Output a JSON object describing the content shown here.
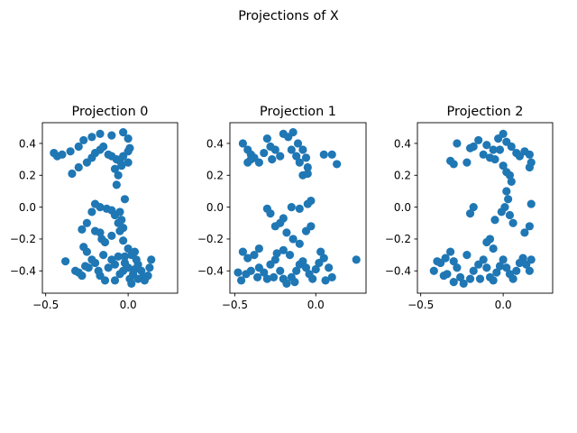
{
  "figure": {
    "title": "Projections of X"
  },
  "chart_data": [
    {
      "type": "scatter",
      "title": "Projection 0",
      "xlabel": "",
      "ylabel": "",
      "xlim": [
        -0.52,
        0.3
      ],
      "ylim": [
        -0.54,
        0.53
      ],
      "xticks": [
        -0.5,
        0.0
      ],
      "xtick_labels": [
        "−0.5",
        "0.0"
      ],
      "yticks": [
        -0.4,
        -0.2,
        0.0,
        0.2,
        0.4
      ],
      "ytick_labels": [
        "−0.4",
        "−0.2",
        "0.0",
        "0.2",
        "0.4"
      ],
      "grid": false,
      "color": "#1f77b4",
      "points": [
        [
          -0.45,
          0.34
        ],
        [
          -0.43,
          0.32
        ],
        [
          -0.4,
          0.33
        ],
        [
          -0.35,
          0.35
        ],
        [
          -0.3,
          0.38
        ],
        [
          -0.27,
          0.42
        ],
        [
          -0.22,
          0.44
        ],
        [
          -0.17,
          0.46
        ],
        [
          -0.1,
          0.45
        ],
        [
          -0.03,
          0.47
        ],
        [
          0.0,
          0.43
        ],
        [
          -0.34,
          0.21
        ],
        [
          -0.3,
          0.25
        ],
        [
          -0.25,
          0.28
        ],
        [
          -0.22,
          0.31
        ],
        [
          -0.2,
          0.34
        ],
        [
          -0.17,
          0.36
        ],
        [
          -0.15,
          0.38
        ],
        [
          -0.12,
          0.33
        ],
        [
          -0.1,
          0.32
        ],
        [
          -0.07,
          0.3
        ],
        [
          -0.05,
          0.29
        ],
        [
          -0.03,
          0.32
        ],
        [
          0.0,
          0.35
        ],
        [
          0.01,
          0.37
        ],
        [
          0.0,
          0.28
        ],
        [
          -0.04,
          0.26
        ],
        [
          -0.08,
          0.24
        ],
        [
          -0.06,
          0.2
        ],
        [
          -0.07,
          0.14
        ],
        [
          -0.2,
          0.02
        ],
        [
          -0.17,
          0.0
        ],
        [
          -0.13,
          -0.01
        ],
        [
          -0.1,
          -0.02
        ],
        [
          -0.08,
          -0.05
        ],
        [
          -0.05,
          -0.03
        ],
        [
          -0.02,
          0.05
        ],
        [
          -0.04,
          -0.08
        ],
        [
          -0.03,
          -0.13
        ],
        [
          -0.06,
          -0.1
        ],
        [
          -0.22,
          -0.03
        ],
        [
          -0.25,
          -0.1
        ],
        [
          -0.28,
          -0.14
        ],
        [
          -0.2,
          -0.15
        ],
        [
          -0.17,
          -0.16
        ],
        [
          -0.16,
          -0.2
        ],
        [
          -0.14,
          -0.22
        ],
        [
          -0.1,
          -0.18
        ],
        [
          -0.05,
          -0.15
        ],
        [
          -0.03,
          -0.21
        ],
        [
          -0.27,
          -0.25
        ],
        [
          -0.25,
          -0.28
        ],
        [
          -0.38,
          -0.34
        ],
        [
          -0.32,
          -0.4
        ],
        [
          -0.28,
          -0.43
        ],
        [
          -0.24,
          -0.38
        ],
        [
          -0.2,
          -0.35
        ],
        [
          -0.18,
          -0.4
        ],
        [
          -0.17,
          -0.43
        ],
        [
          -0.14,
          -0.46
        ],
        [
          -0.12,
          -0.38
        ],
        [
          -0.1,
          -0.33
        ],
        [
          -0.08,
          -0.36
        ],
        [
          -0.06,
          -0.31
        ],
        [
          -0.05,
          -0.42
        ],
        [
          -0.03,
          -0.4
        ],
        [
          -0.02,
          -0.35
        ],
        [
          0.0,
          -0.38
        ],
        [
          0.01,
          -0.45
        ],
        [
          0.02,
          -0.48
        ],
        [
          0.03,
          -0.42
        ],
        [
          0.04,
          -0.39
        ],
        [
          0.05,
          -0.33
        ],
        [
          0.06,
          -0.36
        ],
        [
          0.08,
          -0.4
        ],
        [
          0.09,
          -0.44
        ],
        [
          0.1,
          -0.46
        ],
        [
          0.12,
          -0.43
        ],
        [
          0.13,
          -0.38
        ],
        [
          0.14,
          -0.33
        ],
        [
          -0.02,
          -0.31
        ],
        [
          0.0,
          -0.26
        ],
        [
          0.02,
          -0.3
        ],
        [
          0.04,
          -0.28
        ],
        [
          0.06,
          -0.45
        ],
        [
          -0.08,
          -0.46
        ],
        [
          -0.15,
          -0.3
        ],
        [
          -0.22,
          -0.33
        ],
        [
          -0.3,
          -0.41
        ],
        [
          -0.26,
          -0.37
        ]
      ]
    },
    {
      "type": "scatter",
      "title": "Projection 1",
      "xlabel": "",
      "ylabel": "",
      "xlim": [
        -0.53,
        0.31
      ],
      "ylim": [
        -0.54,
        0.53
      ],
      "xticks": [
        -0.5,
        0.0
      ],
      "xtick_labels": [
        "−0.5",
        "0.0"
      ],
      "yticks": [
        -0.4,
        -0.2,
        0.0,
        0.2,
        0.4
      ],
      "ytick_labels": [
        "−0.4",
        "−0.2",
        "0.0",
        "0.2",
        "0.4"
      ],
      "grid": false,
      "color": "#1f77b4",
      "points": [
        [
          -0.45,
          0.4
        ],
        [
          -0.42,
          0.36
        ],
        [
          -0.4,
          0.33
        ],
        [
          -0.38,
          0.31
        ],
        [
          -0.35,
          0.28
        ],
        [
          -0.32,
          0.34
        ],
        [
          -0.3,
          0.43
        ],
        [
          -0.28,
          0.38
        ],
        [
          -0.25,
          0.36
        ],
        [
          -0.22,
          0.32
        ],
        [
          -0.2,
          0.46
        ],
        [
          -0.17,
          0.44
        ],
        [
          -0.14,
          0.47
        ],
        [
          -0.11,
          0.4
        ],
        [
          -0.08,
          0.36
        ],
        [
          -0.06,
          0.31
        ],
        [
          -0.05,
          0.25
        ],
        [
          -0.08,
          0.2
        ],
        [
          -0.1,
          0.28
        ],
        [
          -0.12,
          0.32
        ],
        [
          -0.15,
          0.36
        ],
        [
          0.05,
          0.33
        ],
        [
          0.1,
          0.33
        ],
        [
          0.13,
          0.27
        ],
        [
          -0.42,
          0.28
        ],
        [
          -0.4,
          0.3
        ],
        [
          -0.27,
          0.3
        ],
        [
          -0.05,
          0.21
        ],
        [
          -0.03,
          0.04
        ],
        [
          -0.05,
          0.02
        ],
        [
          -0.1,
          -0.01
        ],
        [
          -0.15,
          0.0
        ],
        [
          -0.2,
          -0.07
        ],
        [
          -0.22,
          -0.1
        ],
        [
          -0.25,
          -0.12
        ],
        [
          -0.28,
          -0.04
        ],
        [
          -0.3,
          -0.01
        ],
        [
          -0.18,
          -0.16
        ],
        [
          -0.14,
          -0.2
        ],
        [
          -0.1,
          -0.23
        ],
        [
          -0.06,
          -0.15
        ],
        [
          -0.03,
          -0.12
        ],
        [
          -0.35,
          -0.26
        ],
        [
          -0.38,
          -0.3
        ],
        [
          -0.42,
          -0.32
        ],
        [
          -0.45,
          -0.28
        ],
        [
          -0.48,
          -0.41
        ],
        [
          -0.46,
          -0.46
        ],
        [
          -0.43,
          -0.42
        ],
        [
          -0.4,
          -0.4
        ],
        [
          -0.35,
          -0.38
        ],
        [
          -0.32,
          -0.41
        ],
        [
          -0.3,
          -0.45
        ],
        [
          -0.28,
          -0.36
        ],
        [
          -0.25,
          -0.33
        ],
        [
          -0.22,
          -0.4
        ],
        [
          -0.2,
          -0.45
        ],
        [
          -0.18,
          -0.48
        ],
        [
          -0.15,
          -0.44
        ],
        [
          -0.12,
          -0.4
        ],
        [
          -0.1,
          -0.36
        ],
        [
          -0.08,
          -0.34
        ],
        [
          -0.06,
          -0.38
        ],
        [
          -0.04,
          -0.42
        ],
        [
          -0.02,
          -0.45
        ],
        [
          0.0,
          -0.39
        ],
        [
          0.02,
          -0.35
        ],
        [
          0.05,
          -0.32
        ],
        [
          0.08,
          -0.38
        ],
        [
          0.1,
          -0.44
        ],
        [
          0.25,
          -0.33
        ],
        [
          -0.16,
          -0.3
        ],
        [
          -0.2,
          -0.27
        ],
        [
          -0.24,
          -0.29
        ],
        [
          0.06,
          -0.46
        ],
        [
          -0.13,
          -0.47
        ],
        [
          -0.36,
          -0.44
        ],
        [
          -0.26,
          -0.44
        ],
        [
          0.03,
          -0.28
        ]
      ]
    },
    {
      "type": "scatter",
      "title": "Projection 2",
      "xlabel": "",
      "ylabel": "",
      "xlim": [
        -0.52,
        0.3
      ],
      "ylim": [
        -0.54,
        0.53
      ],
      "xticks": [
        -0.5,
        0.0
      ],
      "xtick_labels": [
        "−0.5",
        "0.0"
      ],
      "yticks": [
        -0.4,
        -0.2,
        0.0,
        0.2,
        0.4
      ],
      "ytick_labels": [
        "−0.4",
        "−0.2",
        "0.0",
        "0.2",
        "0.4"
      ],
      "grid": false,
      "color": "#1f77b4",
      "points": [
        [
          -0.28,
          0.4
        ],
        [
          -0.2,
          0.37
        ],
        [
          -0.15,
          0.42
        ],
        [
          -0.1,
          0.39
        ],
        [
          -0.06,
          0.36
        ],
        [
          -0.03,
          0.43
        ],
        [
          0.0,
          0.46
        ],
        [
          0.02,
          0.41
        ],
        [
          0.05,
          0.38
        ],
        [
          0.08,
          0.34
        ],
        [
          0.1,
          0.32
        ],
        [
          0.13,
          0.35
        ],
        [
          0.16,
          0.33
        ],
        [
          0.17,
          0.28
        ],
        [
          0.16,
          0.25
        ],
        [
          -0.32,
          0.29
        ],
        [
          -0.3,
          0.27
        ],
        [
          -0.22,
          0.28
        ],
        [
          -0.18,
          0.38
        ],
        [
          -0.12,
          0.33
        ],
        [
          -0.08,
          0.31
        ],
        [
          -0.05,
          0.3
        ],
        [
          -0.02,
          0.36
        ],
        [
          0.0,
          0.26
        ],
        [
          0.02,
          0.22
        ],
        [
          0.04,
          0.2
        ],
        [
          0.05,
          0.16
        ],
        [
          0.02,
          0.1
        ],
        [
          0.03,
          0.05
        ],
        [
          0.01,
          0.0
        ],
        [
          -0.01,
          -0.03
        ],
        [
          0.04,
          -0.05
        ],
        [
          0.06,
          -0.1
        ],
        [
          -0.05,
          -0.08
        ],
        [
          -0.08,
          -0.2
        ],
        [
          -0.06,
          -0.26
        ],
        [
          -0.1,
          -0.22
        ],
        [
          -0.18,
          0.0
        ],
        [
          -0.2,
          -0.04
        ],
        [
          0.17,
          0.02
        ],
        [
          0.16,
          -0.12
        ],
        [
          0.13,
          -0.16
        ],
        [
          -0.42,
          -0.4
        ],
        [
          -0.38,
          -0.35
        ],
        [
          -0.35,
          -0.32
        ],
        [
          -0.32,
          -0.28
        ],
        [
          -0.28,
          -0.38
        ],
        [
          -0.26,
          -0.44
        ],
        [
          -0.24,
          -0.48
        ],
        [
          -0.2,
          -0.45
        ],
        [
          -0.18,
          -0.4
        ],
        [
          -0.15,
          -0.36
        ],
        [
          -0.12,
          -0.33
        ],
        [
          -0.1,
          -0.38
        ],
        [
          -0.08,
          -0.44
        ],
        [
          -0.06,
          -0.46
        ],
        [
          -0.04,
          -0.41
        ],
        [
          -0.02,
          -0.37
        ],
        [
          0.0,
          -0.33
        ],
        [
          0.02,
          -0.38
        ],
        [
          0.04,
          -0.42
        ],
        [
          0.06,
          -0.45
        ],
        [
          0.08,
          -0.4
        ],
        [
          0.1,
          -0.35
        ],
        [
          0.12,
          -0.32
        ],
        [
          0.14,
          -0.36
        ],
        [
          0.16,
          -0.4
        ],
        [
          0.17,
          -0.33
        ],
        [
          -0.3,
          -0.47
        ],
        [
          -0.36,
          -0.43
        ],
        [
          -0.22,
          -0.3
        ],
        [
          -0.3,
          -0.34
        ],
        [
          -0.4,
          -0.34
        ],
        [
          -0.14,
          -0.45
        ],
        [
          -0.34,
          -0.42
        ]
      ]
    }
  ]
}
